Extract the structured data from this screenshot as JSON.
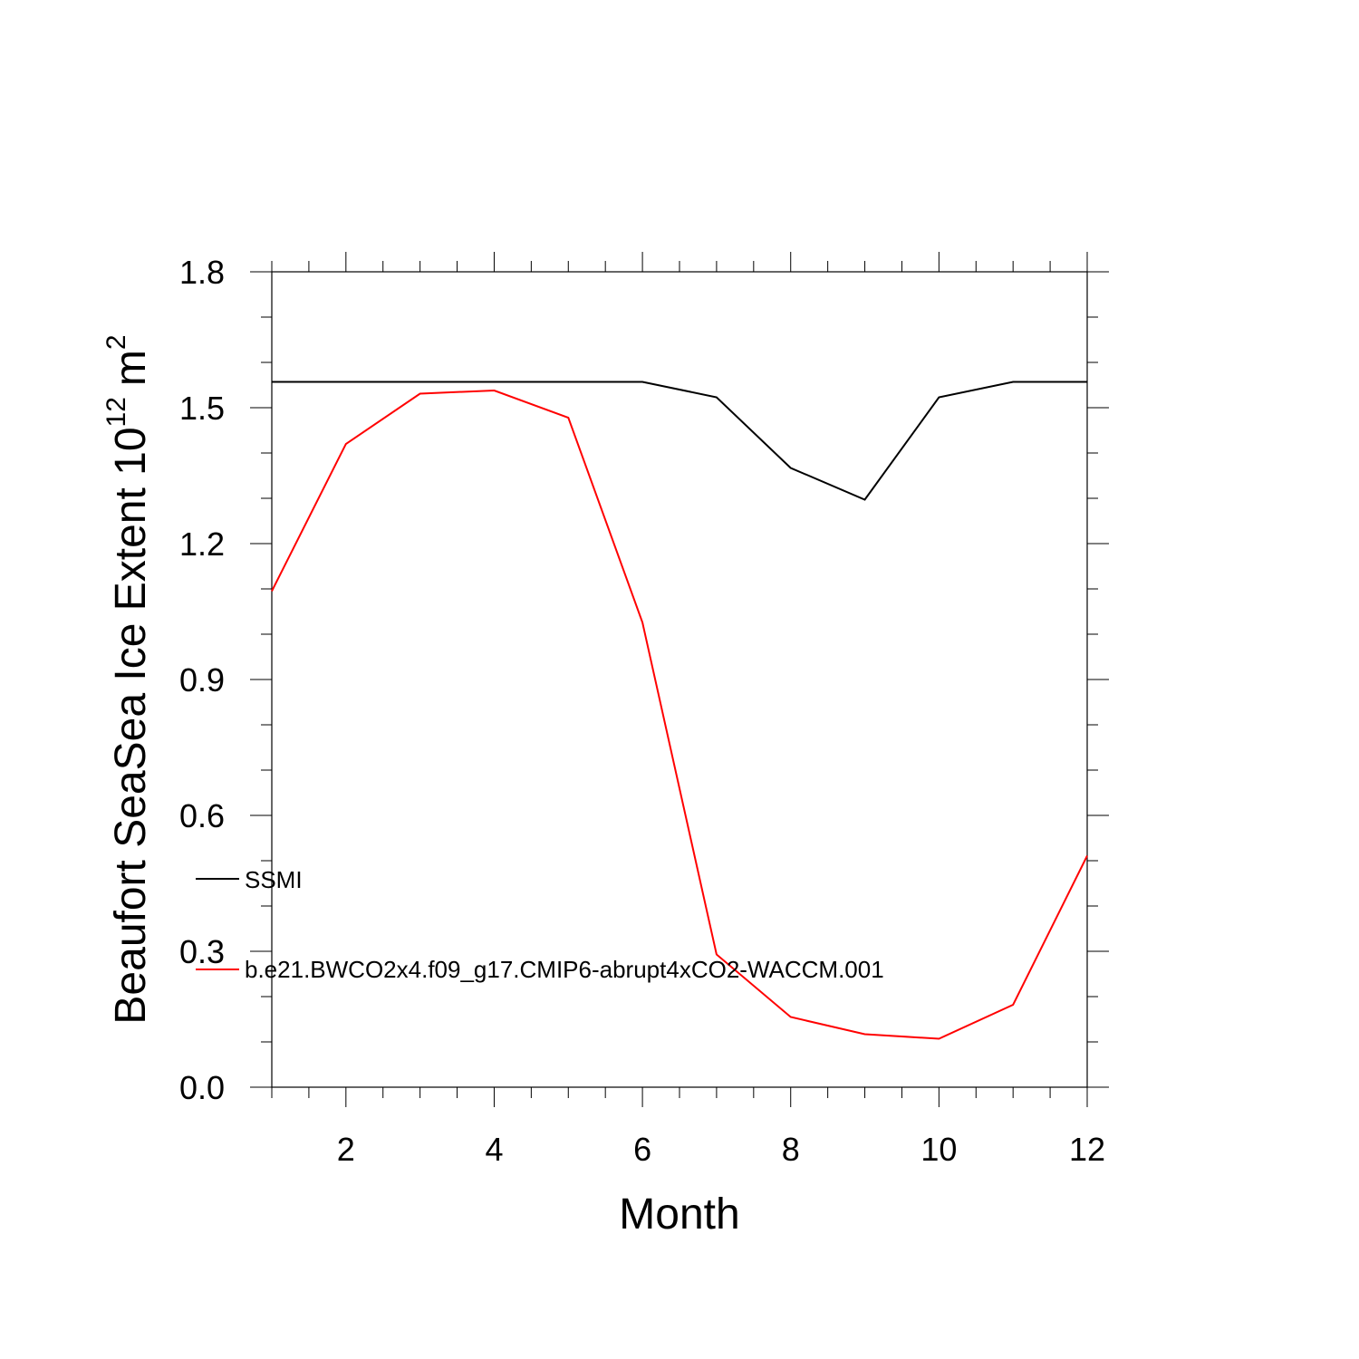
{
  "chart_data": {
    "type": "line",
    "title": "",
    "xlabel": "Month",
    "ylabel": "Beaufort SeaSea Ice Extent 10",
    "ylabel_exponent": "12",
    "ylabel_unit": "m",
    "ylabel_unit_exponent": "2",
    "xlim": [
      1,
      12
    ],
    "ylim": [
      0.0,
      1.8
    ],
    "xticks": [
      2,
      4,
      6,
      8,
      10,
      12
    ],
    "yticks": [
      "0.0",
      "0.3",
      "0.6",
      "0.9",
      "1.2",
      "1.5",
      "1.8"
    ],
    "grid": false,
    "legend_position": "inside-left",
    "series": [
      {
        "name": "SSMI",
        "color": "#000000",
        "x": [
          1,
          2,
          3,
          4,
          5,
          6,
          7,
          8,
          9,
          10,
          11,
          12
        ],
        "y": [
          1.557,
          1.557,
          1.557,
          1.557,
          1.557,
          1.557,
          1.523,
          1.367,
          1.297,
          1.523,
          1.557,
          1.557
        ]
      },
      {
        "name": "b.e21.BWCO2x4.f09_g17.CMIP6-abrupt4xCO2-WACCM.001",
        "color": "#ff0000",
        "x": [
          1,
          2,
          3,
          4,
          5,
          6,
          7,
          8,
          9,
          10,
          11,
          12
        ],
        "y": [
          1.095,
          1.42,
          1.531,
          1.538,
          1.478,
          1.026,
          0.293,
          0.155,
          0.117,
          0.107,
          0.182,
          0.511
        ]
      }
    ]
  }
}
